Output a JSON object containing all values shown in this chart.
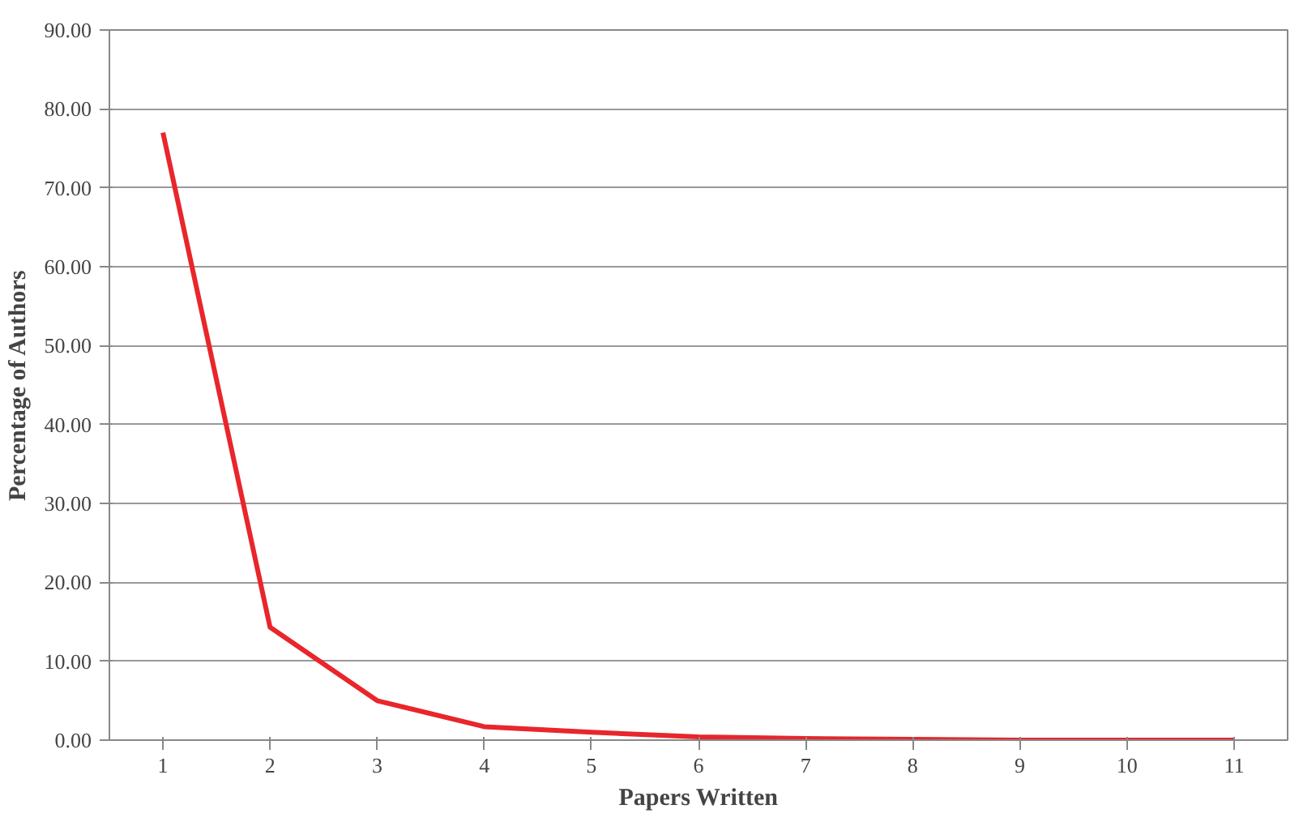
{
  "chart_data": {
    "type": "line",
    "xlabel": "Papers Written",
    "ylabel": "Percentage of Authors",
    "categories": [
      "1",
      "2",
      "3",
      "4",
      "5",
      "6",
      "7",
      "8",
      "9",
      "10",
      "11"
    ],
    "series": [
      {
        "color": "#e8262b",
        "values": [
          77,
          14.3,
          5.0,
          1.7,
          1.0,
          0.4,
          0.2,
          0.1,
          0.0,
          0.0,
          0.0
        ]
      }
    ],
    "ylim": [
      0,
      90
    ],
    "yticks": [
      {
        "value": 0,
        "label": "0.00"
      },
      {
        "value": 10,
        "label": "10.00"
      },
      {
        "value": 20,
        "label": "20.00"
      },
      {
        "value": 30,
        "label": "30.00"
      },
      {
        "value": 40,
        "label": "40.00"
      },
      {
        "value": 50,
        "label": "50.00"
      },
      {
        "value": 60,
        "label": "60.00"
      },
      {
        "value": 70,
        "label": "70.00"
      },
      {
        "value": 80,
        "label": "80.00"
      },
      {
        "value": 90,
        "label": "90.00"
      }
    ],
    "grid": "y",
    "marker": "none",
    "line_style": "solid"
  }
}
